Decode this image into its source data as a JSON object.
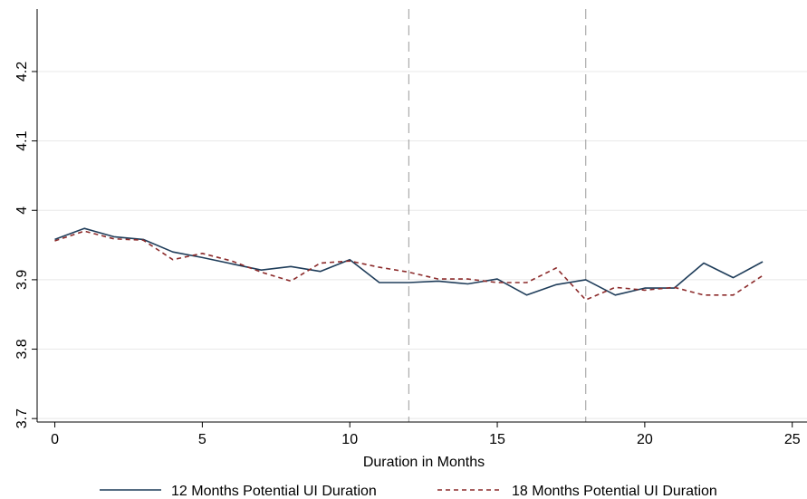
{
  "chart_data": {
    "type": "line",
    "xlabel": "Duration in Months",
    "ylabel": "",
    "xlim": [
      -0.6,
      25.5
    ],
    "ylim": [
      3.695,
      4.29
    ],
    "xticks": [
      0,
      5,
      10,
      15,
      20,
      25
    ],
    "yticks": [
      3.7,
      3.8,
      3.9,
      4.0,
      4.1,
      4.2
    ],
    "ytick_labels": [
      "3.7",
      "3.8",
      "3.9",
      "4",
      "4.1",
      "4.2"
    ],
    "grid": true,
    "vlines": [
      12,
      18
    ],
    "legend_position": "bottom",
    "x": [
      0,
      1,
      2,
      3,
      4,
      5,
      6,
      7,
      8,
      9,
      10,
      11,
      12,
      13,
      14,
      15,
      16,
      17,
      18,
      19,
      20,
      21,
      22,
      23,
      24
    ],
    "series": [
      {
        "name": "12 Months Potential UI Duration",
        "color": "#1f3d5a",
        "style": "solid",
        "values": [
          3.958,
          3.974,
          3.962,
          3.958,
          3.94,
          3.932,
          3.923,
          3.914,
          3.919,
          3.912,
          3.929,
          3.896,
          3.896,
          3.898,
          3.894,
          3.901,
          3.878,
          3.893,
          3.9,
          3.878,
          3.888,
          3.888,
          3.924,
          3.903,
          3.926
        ]
      },
      {
        "name": "18 Months Potential UI Duration",
        "color": "#8c2b2b",
        "style": "dashed",
        "values": [
          3.956,
          3.97,
          3.959,
          3.957,
          3.929,
          3.938,
          3.927,
          3.911,
          3.898,
          3.924,
          3.927,
          3.918,
          3.911,
          3.901,
          3.901,
          3.896,
          3.896,
          3.917,
          3.871,
          3.889,
          3.885,
          3.889,
          3.878,
          3.878,
          3.906
        ]
      }
    ]
  }
}
